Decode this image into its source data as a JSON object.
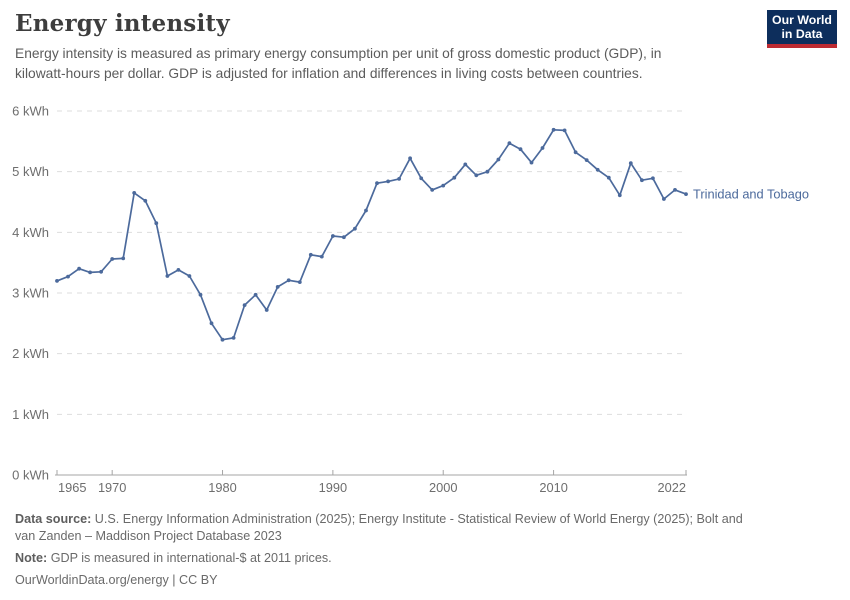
{
  "header": {
    "title": "Energy intensity",
    "subtitle": "Energy intensity is measured as primary energy consumption per unit of gross domestic product (GDP), in kilowatt-hours per dollar. GDP is adjusted for inflation and differences in living costs between countries."
  },
  "logo": {
    "line1": "Our World",
    "line2": "in Data"
  },
  "chart_data": {
    "type": "line",
    "title": "Energy intensity",
    "unit": "kWh per dollar",
    "x": [
      1965,
      1966,
      1967,
      1968,
      1969,
      1970,
      1971,
      1972,
      1973,
      1974,
      1975,
      1976,
      1977,
      1978,
      1979,
      1980,
      1981,
      1982,
      1983,
      1984,
      1985,
      1986,
      1987,
      1988,
      1989,
      1990,
      1991,
      1992,
      1993,
      1994,
      1995,
      1996,
      1997,
      1998,
      1999,
      2000,
      2001,
      2002,
      2003,
      2004,
      2005,
      2006,
      2007,
      2008,
      2009,
      2010,
      2011,
      2012,
      2013,
      2014,
      2015,
      2016,
      2017,
      2018,
      2019,
      2020,
      2021,
      2022
    ],
    "series": [
      {
        "name": "Trinidad and Tobago",
        "color": "#4C6A9C",
        "values": [
          3.2,
          3.27,
          3.4,
          3.34,
          3.35,
          3.56,
          3.57,
          4.65,
          4.52,
          4.15,
          3.28,
          3.38,
          3.28,
          2.97,
          2.5,
          2.23,
          2.26,
          2.8,
          2.97,
          2.72,
          3.1,
          3.21,
          3.18,
          3.63,
          3.6,
          3.94,
          3.92,
          4.06,
          4.36,
          4.81,
          4.84,
          4.88,
          5.22,
          4.89,
          4.7,
          4.77,
          4.9,
          5.12,
          4.94,
          5.0,
          5.2,
          5.47,
          5.37,
          5.15,
          5.39,
          5.69,
          5.68,
          5.32,
          5.19,
          5.03,
          4.9,
          4.61,
          5.14,
          4.86,
          4.89,
          4.55,
          4.7,
          4.63
        ]
      }
    ],
    "ylim": [
      0,
      6
    ],
    "yticks": [
      0,
      1,
      2,
      3,
      4,
      5,
      6
    ],
    "ytick_suffix": " kWh",
    "xticks": [
      1965,
      1970,
      1980,
      1990,
      2000,
      2010,
      2022
    ],
    "grid": "horizontal dashed",
    "legend_position": "label at end of line"
  },
  "footer": {
    "data_source_label": "Data source:",
    "data_source": "U.S. Energy Information Administration (2025); Energy Institute - Statistical Review of World Energy (2025); Bolt and van Zanden – Maddison Project Database 2023",
    "note_label": "Note:",
    "note": "GDP is measured in international-$ at 2011 prices.",
    "credit": "OurWorldinData.org/energy | CC BY"
  },
  "colors": {
    "line": "#4C6A9C",
    "grid": "#dddddd",
    "axis": "#a5a5a5",
    "tick_label": "#6e6e6e",
    "title": "#3d3d3d",
    "subtitle": "#5c5c5c",
    "footer": "#6a6a6a",
    "logo_bg": "#0d2e5c",
    "logo_stripe": "#bd2b32"
  }
}
